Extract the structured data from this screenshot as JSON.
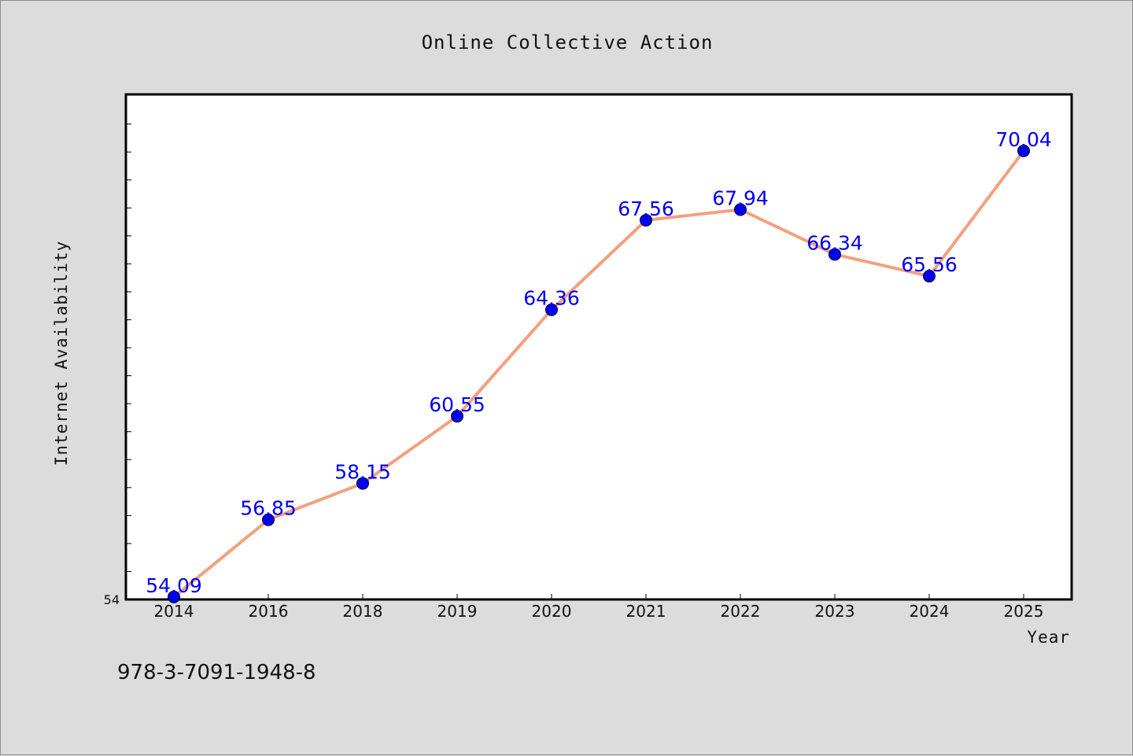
{
  "chart_data": {
    "type": "line",
    "title": "Online Collective Action",
    "xlabel": "Year",
    "ylabel": "Internet Availability",
    "categories": [
      "2014",
      "2016",
      "2018",
      "2019",
      "2020",
      "2021",
      "2022",
      "2023",
      "2024",
      "2025"
    ],
    "series": [
      {
        "values": [
          54.09,
          56.85,
          58.15,
          60.55,
          64.36,
          67.56,
          67.94,
          66.34,
          65.56,
          70.04
        ],
        "labels": [
          "54.09",
          "56.85",
          "58.15",
          "60.55",
          "64.36",
          "67.56",
          "67.94",
          "66.34",
          "65.56",
          "70.04"
        ],
        "line_color": "#f4a07e",
        "marker_color": "#0000ee"
      }
    ],
    "ylim": [
      54,
      72
    ],
    "y_tick_labels": [
      "54"
    ],
    "grid": false,
    "legend": "none",
    "background_color": "#dcdcdc",
    "plot_background_color": "#ffffff"
  },
  "footer": {
    "isbn": "978-3-7091-1948-8"
  }
}
